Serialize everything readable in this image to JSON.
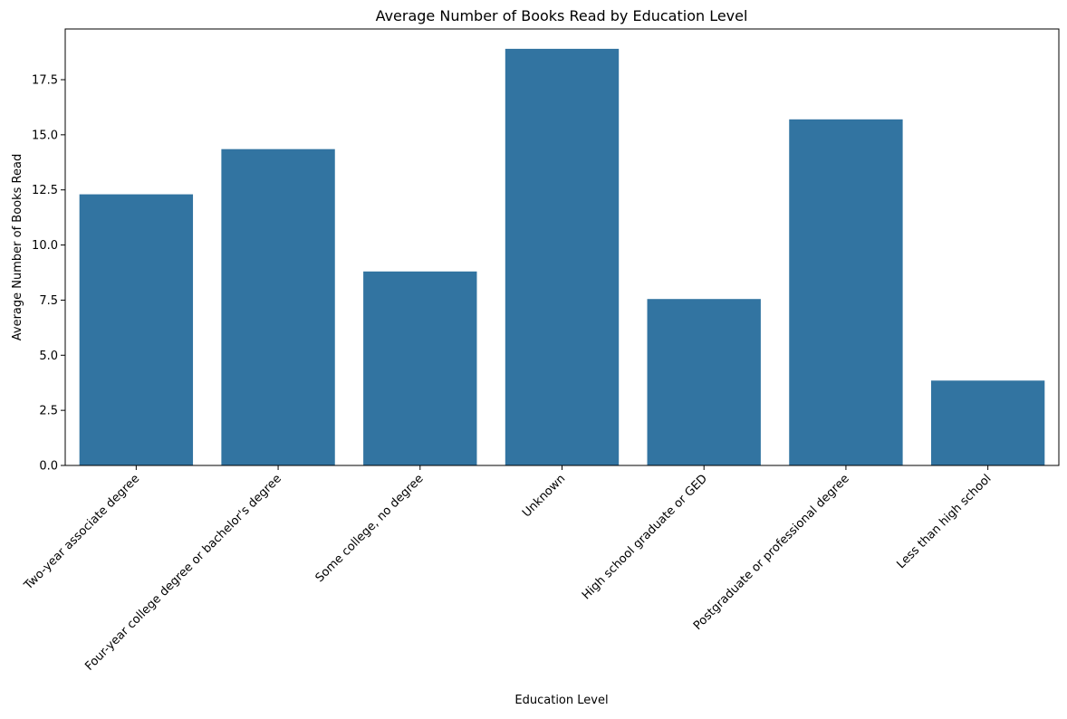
{
  "chart_data": {
    "type": "bar",
    "title": "Average Number of Books Read by Education Level",
    "xlabel": "Education Level",
    "ylabel": "Average Number of Books Read",
    "categories": [
      "Two-year associate degree",
      "Four-year college degree or bachelor's degree",
      "Some college, no degree",
      "Unknown",
      "High school graduate or GED",
      "Postgraduate or professional degree",
      "Less than high school"
    ],
    "values": [
      12.3,
      14.35,
      8.8,
      18.9,
      7.55,
      15.7,
      3.85
    ],
    "ylim": [
      0,
      19.8
    ],
    "yticks": [
      0.0,
      2.5,
      5.0,
      7.5,
      10.0,
      12.5,
      15.0,
      17.5
    ],
    "ytick_labels": [
      "0.0",
      "2.5",
      "5.0",
      "7.5",
      "10.0",
      "12.5",
      "15.0",
      "17.5"
    ],
    "bar_color": "#3274a1",
    "grid": false,
    "legend": "none"
  }
}
